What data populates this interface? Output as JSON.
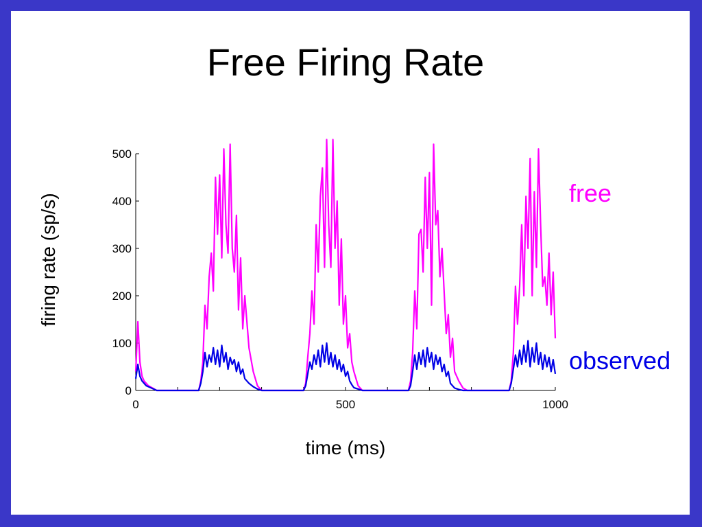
{
  "slide": {
    "title": "Free Firing Rate"
  },
  "colors": {
    "frame": "#3a37c8",
    "free": "#ff00ff",
    "observed": "#0000e6"
  },
  "chart_data": {
    "type": "line",
    "title": "Free Firing Rate",
    "xlabel": "time (ms)",
    "ylabel": "firing rate (sp/s)",
    "xlim": [
      0,
      1000
    ],
    "ylim": [
      0,
      500
    ],
    "xticks": [
      0,
      500,
      1000
    ],
    "yticks": [
      0,
      100,
      200,
      300,
      400,
      500
    ],
    "grid": false,
    "legend": "right, labels placed beside series",
    "series": [
      {
        "name": "free",
        "color": "#ff00ff",
        "x": [
          0,
          5,
          10,
          15,
          20,
          25,
          30,
          40,
          50,
          60,
          70,
          150,
          155,
          160,
          165,
          170,
          175,
          180,
          185,
          190,
          195,
          200,
          205,
          210,
          215,
          220,
          225,
          230,
          235,
          240,
          245,
          250,
          255,
          260,
          270,
          280,
          290,
          300,
          400,
          405,
          410,
          415,
          420,
          425,
          430,
          435,
          440,
          445,
          450,
          455,
          460,
          465,
          470,
          475,
          480,
          485,
          490,
          495,
          500,
          505,
          510,
          515,
          520,
          530,
          540,
          550,
          650,
          655,
          660,
          665,
          670,
          675,
          680,
          685,
          690,
          695,
          700,
          705,
          710,
          715,
          720,
          725,
          730,
          735,
          740,
          745,
          750,
          755,
          760,
          770,
          780,
          790,
          800,
          890,
          895,
          900,
          905,
          910,
          915,
          920,
          925,
          930,
          935,
          940,
          945,
          950,
          955,
          960,
          965,
          970,
          975,
          980,
          985,
          990,
          995,
          1000
        ],
        "values": [
          40,
          145,
          60,
          30,
          20,
          15,
          10,
          5,
          0,
          0,
          0,
          0,
          20,
          60,
          180,
          130,
          240,
          290,
          210,
          450,
          330,
          455,
          280,
          510,
          350,
          290,
          520,
          300,
          250,
          370,
          170,
          280,
          130,
          200,
          90,
          40,
          10,
          0,
          0,
          15,
          70,
          120,
          210,
          140,
          350,
          250,
          410,
          470,
          260,
          530,
          350,
          260,
          530,
          300,
          400,
          180,
          320,
          140,
          200,
          90,
          120,
          60,
          40,
          10,
          0,
          0,
          0,
          20,
          80,
          210,
          130,
          330,
          340,
          250,
          450,
          300,
          460,
          180,
          520,
          350,
          380,
          240,
          300,
          210,
          120,
          160,
          70,
          110,
          40,
          20,
          5,
          0,
          0,
          0,
          20,
          80,
          220,
          140,
          220,
          350,
          200,
          410,
          300,
          490,
          200,
          420,
          260,
          510,
          350,
          220,
          240,
          180,
          290,
          160,
          250,
          110
        ]
      },
      {
        "name": "observed",
        "color": "#0000e6",
        "x": [
          0,
          5,
          10,
          15,
          20,
          25,
          30,
          40,
          50,
          60,
          70,
          150,
          155,
          160,
          165,
          170,
          175,
          180,
          185,
          190,
          195,
          200,
          205,
          210,
          215,
          220,
          225,
          230,
          235,
          240,
          245,
          250,
          255,
          260,
          270,
          280,
          290,
          300,
          400,
          405,
          410,
          415,
          420,
          425,
          430,
          435,
          440,
          445,
          450,
          455,
          460,
          465,
          470,
          475,
          480,
          485,
          490,
          495,
          500,
          505,
          510,
          515,
          520,
          530,
          540,
          550,
          650,
          655,
          660,
          665,
          670,
          675,
          680,
          685,
          690,
          695,
          700,
          705,
          710,
          715,
          720,
          725,
          730,
          735,
          740,
          745,
          750,
          755,
          760,
          770,
          780,
          790,
          800,
          890,
          895,
          900,
          905,
          910,
          915,
          920,
          925,
          930,
          935,
          940,
          945,
          950,
          955,
          960,
          965,
          970,
          975,
          980,
          985,
          990,
          995,
          1000
        ],
        "values": [
          25,
          55,
          30,
          20,
          15,
          10,
          8,
          4,
          0,
          0,
          0,
          0,
          15,
          40,
          80,
          50,
          75,
          60,
          90,
          55,
          85,
          50,
          95,
          60,
          80,
          45,
          70,
          55,
          65,
          40,
          60,
          35,
          45,
          25,
          15,
          8,
          3,
          0,
          0,
          10,
          35,
          60,
          45,
          75,
          55,
          85,
          50,
          95,
          60,
          100,
          55,
          80,
          50,
          75,
          45,
          65,
          40,
          55,
          30,
          40,
          20,
          12,
          6,
          3,
          0,
          0,
          0,
          10,
          40,
          75,
          45,
          80,
          55,
          85,
          50,
          90,
          60,
          80,
          45,
          75,
          55,
          70,
          40,
          55,
          30,
          40,
          15,
          10,
          5,
          2,
          0,
          0,
          0,
          0,
          15,
          45,
          75,
          50,
          85,
          55,
          95,
          60,
          105,
          50,
          90,
          60,
          100,
          55,
          80,
          45,
          75,
          50,
          70,
          40,
          65,
          35
        ]
      }
    ]
  }
}
